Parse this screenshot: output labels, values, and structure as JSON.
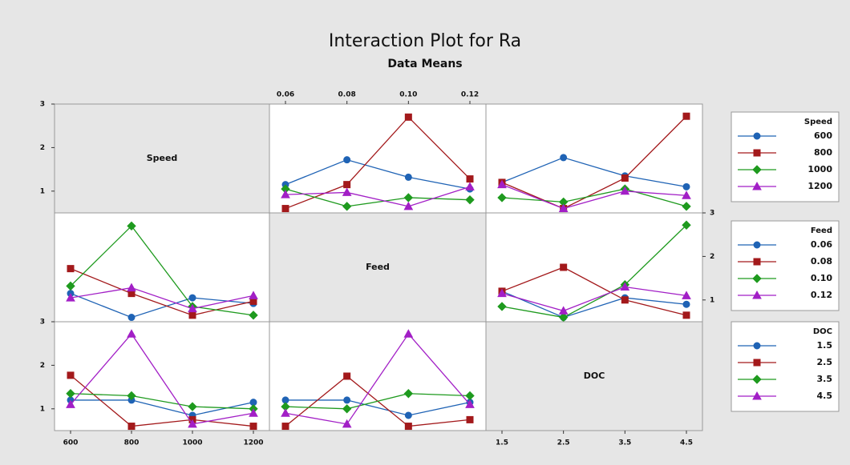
{
  "chart_data": {
    "type": "interaction-matrix",
    "title": "Interaction Plot for Ra",
    "subtitle": "Data Means",
    "ylim": [
      0.5,
      3
    ],
    "yticks": [
      1,
      2,
      3
    ],
    "colors": [
      "#1f63b5",
      "#a3191b",
      "#1e9a1e",
      "#a21fc6"
    ],
    "factors": [
      {
        "name": "Speed",
        "levels": [
          "600",
          "800",
          "1000",
          "1200"
        ]
      },
      {
        "name": "Feed",
        "levels": [
          "0.06",
          "0.08",
          "0.10",
          "0.12"
        ]
      },
      {
        "name": "DOC",
        "levels": [
          "1.5",
          "2.5",
          "3.5",
          "4.5"
        ]
      }
    ],
    "means": [
      [
        [
          1.15,
          1.72,
          1.32,
          1.05
        ],
        [
          0.6,
          1.15,
          2.7,
          1.28
        ],
        [
          1.05,
          0.65,
          0.85,
          0.8
        ],
        [
          0.92,
          0.97,
          0.65,
          1.1
        ]
      ],
      [
        [
          1.2,
          1.77,
          1.35,
          1.1
        ],
        [
          1.2,
          0.6,
          1.3,
          2.72
        ],
        [
          0.85,
          0.75,
          1.05,
          0.65
        ],
        [
          1.15,
          0.6,
          1.0,
          0.9
        ]
      ],
      [
        [
          1.2,
          0.6,
          1.05,
          0.9
        ],
        [
          1.2,
          1.75,
          1.0,
          0.65
        ],
        [
          0.85,
          0.6,
          1.35,
          2.72
        ],
        [
          1.15,
          0.75,
          1.3,
          1.1
        ]
      ]
    ]
  }
}
